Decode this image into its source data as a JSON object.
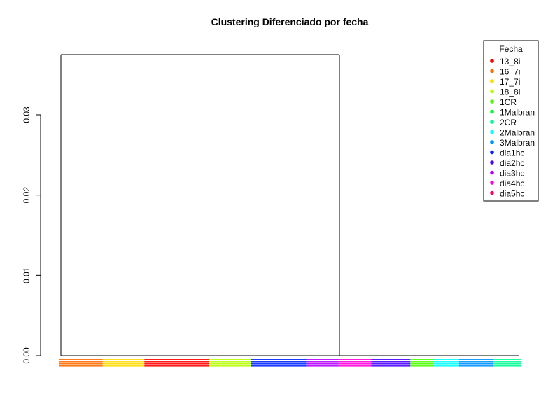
{
  "chart_data": {
    "type": "dendrogram",
    "title": "Clustering  Diferenciado por fecha",
    "xlabel": "",
    "ylabel": "",
    "ylim": [
      0,
      0.0375
    ],
    "y_ticks": [
      0.0,
      0.01,
      0.02,
      0.03
    ],
    "y_tick_labels": [
      "0.00",
      "0.01",
      "0.02",
      "0.03"
    ],
    "merge_height": 0.0375,
    "legend": {
      "title": "Fecha",
      "placement": "top-right",
      "entries": [
        {
          "label": "13_8i",
          "color": "#FF0000"
        },
        {
          "label": "16_7i",
          "color": "#FF6D00"
        },
        {
          "label": "17_7i",
          "color": "#FFDB00"
        },
        {
          "label": "18_8i",
          "color": "#B6FF00"
        },
        {
          "label": "1CR",
          "color": "#49FF00"
        },
        {
          "label": "1Malbran",
          "color": "#00FF24"
        },
        {
          "label": "2CR",
          "color": "#00FF92"
        },
        {
          "label": "2Malbran",
          "color": "#00FFFF"
        },
        {
          "label": "3Malbran",
          "color": "#0092FF"
        },
        {
          "label": "dia1hc",
          "color": "#0024FF"
        },
        {
          "label": "dia2hc",
          "color": "#4900FF"
        },
        {
          "label": "dia3hc",
          "color": "#B600FF"
        },
        {
          "label": "dia4hc",
          "color": "#FF00DB"
        },
        {
          "label": "dia5hc",
          "color": "#FF006D"
        }
      ]
    },
    "leaf_color_bands": [
      {
        "group": "16_7i",
        "color": "#FF6D00",
        "start": 0.0,
        "end": 0.095
      },
      {
        "group": "17_7i",
        "color": "#FFDB00",
        "start": 0.095,
        "end": 0.185
      },
      {
        "group": "13_8i",
        "color": "#FF0000",
        "start": 0.185,
        "end": 0.325
      },
      {
        "group": "18_8i",
        "color": "#B6FF00",
        "start": 0.325,
        "end": 0.415
      },
      {
        "group": "dia1hc",
        "color": "#0024FF",
        "start": 0.415,
        "end": 0.535
      },
      {
        "group": "dia3hc",
        "color": "#B600FF",
        "start": 0.535,
        "end": 0.605
      },
      {
        "group": "dia4hc",
        "color": "#FF00DB",
        "start": 0.605,
        "end": 0.675
      },
      {
        "group": "dia2hc",
        "color": "#4900FF",
        "start": 0.675,
        "end": 0.76
      },
      {
        "group": "1CR",
        "color": "#49FF00",
        "start": 0.76,
        "end": 0.81
      },
      {
        "group": "2Malbran",
        "color": "#00FFFF",
        "start": 0.81,
        "end": 0.865
      },
      {
        "group": "3Malbran",
        "color": "#0092FF",
        "start": 0.865,
        "end": 0.94
      },
      {
        "group": "2CR",
        "color": "#00FF92",
        "start": 0.94,
        "end": 1.0
      }
    ]
  }
}
